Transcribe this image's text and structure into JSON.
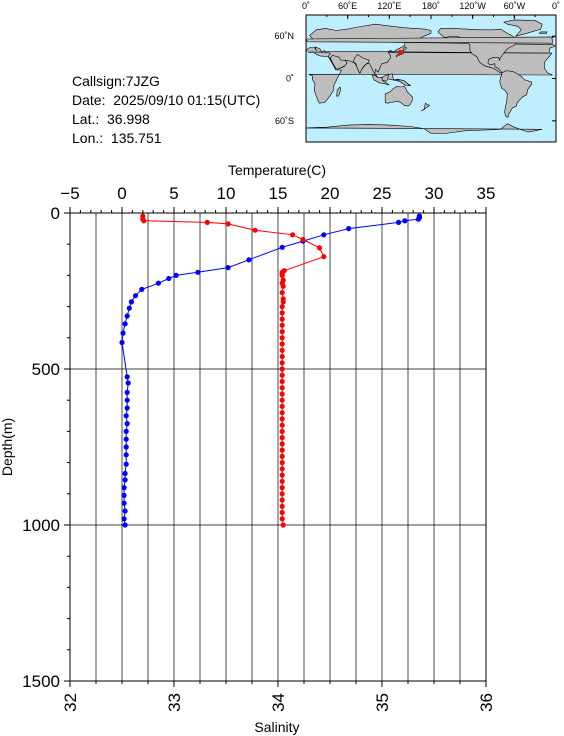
{
  "station": {
    "callsign": "Callsign:7JZG",
    "date": "Date:  2025/09/10 01:15(UTC)",
    "lat": "Lat.:  36.998",
    "lon": "Lon.:  135.751"
  },
  "map": {
    "top_lon_labels": [
      "0˚",
      "60˚E",
      "120˚E",
      "180˚",
      "120˚W",
      "60˚W",
      "0˚"
    ],
    "right_lat_labels": [
      "60˚N",
      "0˚",
      "60˚S"
    ],
    "ocean_color": "#bfeefe",
    "land_color": "#bebebe",
    "marker_color": "#ff0000",
    "marker_lon": 135.751,
    "marker_lat": 36.998
  },
  "chart_data": {
    "type": "line",
    "top_axis_label": "Temperature(C)",
    "bottom_axis_label": "Salinity",
    "y_axis_label": "Depth(m)",
    "temperature_range": [
      -5,
      35
    ],
    "temperature_ticks": [
      "−5",
      "0",
      "5",
      "10",
      "15",
      "20",
      "25",
      "30",
      "35"
    ],
    "salinity_range": [
      32,
      36
    ],
    "salinity_ticks": [
      "32",
      "33",
      "34",
      "35",
      "36"
    ],
    "depth_range": [
      0,
      1500
    ],
    "depth_ticks": [
      "0",
      "500",
      "1000",
      "1500"
    ],
    "grid": true,
    "series": [
      {
        "color": "#0000ff",
        "axis": "temperature",
        "points": [
          [
            28.6,
            10
          ],
          [
            28.6,
            15
          ],
          [
            28.5,
            20
          ],
          [
            27.2,
            25
          ],
          [
            26.6,
            30
          ],
          [
            21.8,
            50
          ],
          [
            19.4,
            70
          ],
          [
            17.4,
            90
          ],
          [
            15.4,
            110
          ],
          [
            12.2,
            150
          ],
          [
            10.2,
            175
          ],
          [
            7.3,
            190
          ],
          [
            5.2,
            200
          ],
          [
            4.5,
            210
          ],
          [
            3.5,
            225
          ],
          [
            1.9,
            245
          ],
          [
            1.3,
            265
          ],
          [
            0.9,
            285
          ],
          [
            0.7,
            305
          ],
          [
            0.5,
            330
          ],
          [
            0.3,
            355
          ],
          [
            0.1,
            385
          ],
          [
            0.0,
            415
          ],
          [
            0.5,
            525
          ],
          [
            0.6,
            545
          ],
          [
            0.5,
            575
          ],
          [
            0.5,
            600
          ],
          [
            0.5,
            625
          ],
          [
            0.4,
            650
          ],
          [
            0.5,
            675
          ],
          [
            0.4,
            700
          ],
          [
            0.4,
            725
          ],
          [
            0.4,
            750
          ],
          [
            0.4,
            775
          ],
          [
            0.4,
            805
          ],
          [
            0.3,
            835
          ],
          [
            0.3,
            855
          ],
          [
            0.2,
            880
          ],
          [
            0.2,
            905
          ],
          [
            0.2,
            930
          ],
          [
            0.3,
            955
          ],
          [
            0.2,
            980
          ],
          [
            0.3,
            1000
          ]
        ]
      },
      {
        "color": "#ff0000",
        "axis": "salinity",
        "points": [
          [
            32.7,
            10
          ],
          [
            32.7,
            20
          ],
          [
            32.71,
            25
          ],
          [
            33.32,
            30
          ],
          [
            33.52,
            35
          ],
          [
            33.78,
            55
          ],
          [
            34.14,
            70
          ],
          [
            34.24,
            85
          ],
          [
            34.4,
            112
          ],
          [
            34.44,
            140
          ],
          [
            34.06,
            185
          ],
          [
            34.04,
            190
          ],
          [
            34.04,
            195
          ],
          [
            34.04,
            200
          ],
          [
            34.05,
            215
          ],
          [
            34.04,
            225
          ],
          [
            34.05,
            235
          ],
          [
            34.04,
            255
          ],
          [
            34.05,
            275
          ],
          [
            34.05,
            285
          ],
          [
            34.04,
            300
          ],
          [
            34.04,
            320
          ],
          [
            34.04,
            340
          ],
          [
            34.04,
            360
          ],
          [
            34.04,
            380
          ],
          [
            34.04,
            400
          ],
          [
            34.04,
            420
          ],
          [
            34.04,
            440
          ],
          [
            34.04,
            460
          ],
          [
            34.04,
            480
          ],
          [
            34.04,
            500
          ],
          [
            34.04,
            520
          ],
          [
            34.04,
            540
          ],
          [
            34.04,
            560
          ],
          [
            34.04,
            580
          ],
          [
            34.04,
            600
          ],
          [
            34.04,
            620
          ],
          [
            34.04,
            640
          ],
          [
            34.04,
            660
          ],
          [
            34.04,
            680
          ],
          [
            34.04,
            700
          ],
          [
            34.04,
            720
          ],
          [
            34.04,
            740
          ],
          [
            34.04,
            760
          ],
          [
            34.04,
            780
          ],
          [
            34.04,
            800
          ],
          [
            34.04,
            820
          ],
          [
            34.04,
            840
          ],
          [
            34.04,
            860
          ],
          [
            34.04,
            880
          ],
          [
            34.04,
            900
          ],
          [
            34.04,
            920
          ],
          [
            34.04,
            940
          ],
          [
            34.04,
            960
          ],
          [
            34.04,
            980
          ],
          [
            34.05,
            1000
          ]
        ]
      }
    ]
  }
}
